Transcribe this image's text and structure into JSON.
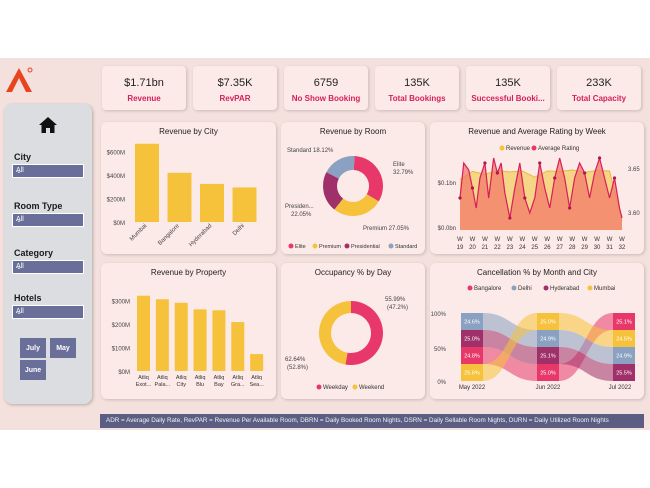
{
  "kpis": [
    {
      "value": "$1.71bn",
      "label": "Revenue"
    },
    {
      "value": "$7.35K",
      "label": "RevPAR"
    },
    {
      "value": "6759",
      "label": "No Show Booking"
    },
    {
      "value": "135K",
      "label": "Total Bookings"
    },
    {
      "value": "135K",
      "label": "Successful Booki..."
    },
    {
      "value": "233K",
      "label": "Total Capacity"
    }
  ],
  "filters": {
    "city": {
      "label": "City",
      "value": "All"
    },
    "room_type": {
      "label": "Room Type",
      "value": "All"
    },
    "category": {
      "label": "Category",
      "value": "All"
    },
    "hotels": {
      "label": "Hotels",
      "value": "All"
    }
  },
  "months": [
    "July",
    "May",
    "June"
  ],
  "colors": {
    "accent": "#d61f5a",
    "yellow": "#f7c23b",
    "slate": "#6a6f9a",
    "blue": "#8aa1c1",
    "purple": "#a0306a",
    "pink": "#e8386a"
  },
  "footer_text": "ADR = Average Daily Rate, RevPAR = Revenue Per Available Room, DBRN = Daily Booked Room Nights, DSRN = Daily Sellable Room Nights, DURN = Daily Utilized Room Nights",
  "chart_data": [
    {
      "title": "Revenue by City",
      "type": "bar",
      "categories": [
        "Mumbai",
        "Bangalore",
        "Hyderabad",
        "Delhi"
      ],
      "values": [
        668,
        420,
        325,
        295
      ],
      "ylim": [
        0,
        700
      ],
      "yticks": [
        "$0M",
        "$200M",
        "$400M",
        "$600M"
      ]
    },
    {
      "title": "Revenue by Room",
      "type": "pie",
      "labels": [
        "Elite",
        "Premium",
        "Presidential",
        "Standard"
      ],
      "values": [
        32.79,
        27.05,
        22.05,
        18.12
      ],
      "slice_labels": [
        "Elite 32.79%",
        "Premium 27.05%",
        "Presiden... 22.05%",
        "Standard 18.12%"
      ]
    },
    {
      "title": "Revenue and Average Rating by Week",
      "type": "area",
      "legend": [
        "Revenue",
        "Average Rating"
      ],
      "categories": [
        "W 19",
        "W 20",
        "W 21",
        "W 22",
        "W 23",
        "W 24",
        "W 25",
        "W 26",
        "W 27",
        "W 28",
        "W 29",
        "W 30",
        "W 31",
        "W 32"
      ],
      "yticks_left": [
        "$0.0bn",
        "$0.1bn"
      ],
      "yticks_right": [
        "3.60",
        "3.65"
      ],
      "revenue_bn": [
        0.105,
        0.122,
        0.116,
        0.124,
        0.121,
        0.123,
        0.11,
        0.123,
        0.122,
        0.125,
        0.12,
        0.124,
        0.123,
        0.018
      ],
      "rating_points": [
        [
          0,
          3.62
        ],
        [
          0.3,
          3.655
        ],
        [
          0.7,
          3.648
        ],
        [
          1,
          3.63
        ],
        [
          1.3,
          3.61
        ],
        [
          1.6,
          3.64
        ],
        [
          2,
          3.655
        ],
        [
          2.3,
          3.62
        ],
        [
          2.7,
          3.66
        ],
        [
          3,
          3.645
        ],
        [
          3.3,
          3.655
        ],
        [
          3.6,
          3.625
        ],
        [
          4,
          3.6
        ],
        [
          4.4,
          3.63
        ],
        [
          4.8,
          3.655
        ],
        [
          5.2,
          3.62
        ],
        [
          5.6,
          3.605
        ],
        [
          6,
          3.62
        ],
        [
          6.4,
          3.655
        ],
        [
          6.8,
          3.63
        ],
        [
          7.2,
          3.61
        ],
        [
          7.6,
          3.64
        ],
        [
          8,
          3.66
        ],
        [
          8.4,
          3.64
        ],
        [
          8.8,
          3.61
        ],
        [
          9.2,
          3.64
        ],
        [
          9.6,
          3.655
        ],
        [
          10,
          3.645
        ],
        [
          10.4,
          3.62
        ],
        [
          10.8,
          3.645
        ],
        [
          11.2,
          3.66
        ],
        [
          11.6,
          3.64
        ],
        [
          12,
          3.62
        ],
        [
          12.4,
          3.64
        ],
        [
          12.8,
          3.61
        ],
        [
          13,
          3.6
        ]
      ]
    },
    {
      "title": "Revenue by Property",
      "type": "bar",
      "categories": [
        "Atliq Exot...",
        "Atliq Pala...",
        "Atliq City",
        "Atliq Blu",
        "Atliq Bay",
        "Atliq Gra...",
        "Atliq Sea..."
      ],
      "values": [
        320,
        305,
        290,
        262,
        258,
        208,
        72
      ],
      "ylim": [
        0,
        340
      ],
      "yticks": [
        "$0M",
        "$100M",
        "$200M",
        "$300M"
      ]
    },
    {
      "title": "Occupancy % by Day",
      "type": "pie",
      "labels": [
        "Weekday",
        "Weekend"
      ],
      "values": [
        52.8,
        47.2
      ],
      "slice_labels": [
        "62.64% (52.8%)",
        "55.99% (47.2%)"
      ]
    },
    {
      "title": "Cancellation % by Month and City",
      "type": "area",
      "legend": [
        "Bangalore",
        "Delhi",
        "Hyderabad",
        "Mumbai"
      ],
      "categories": [
        "May 2022",
        "Jun 2022",
        "Jul 2022"
      ],
      "yticks": [
        "0%",
        "50%",
        "100%"
      ],
      "series": [
        {
          "name": "Bangalore",
          "values": [
            24.8,
            24.9,
            25.1
          ]
        },
        {
          "name": "Delhi",
          "values": [
            25.6,
            25.0,
            24.5
          ]
        },
        {
          "name": "Hyderabad",
          "values": [
            25.0,
            25.1,
            24.9
          ]
        },
        {
          "name": "Mumbai",
          "values": [
            24.6,
            25.0,
            25.5
          ]
        }
      ],
      "labels": [
        [
          "24.6%",
          "25.0%",
          "24.8%",
          "25.6%"
        ],
        [
          "25.0%",
          "24.9%",
          "25.1%",
          "25.0%"
        ],
        [
          "25.1%",
          "24.5%",
          "24.9%",
          "25.5%"
        ]
      ]
    }
  ]
}
